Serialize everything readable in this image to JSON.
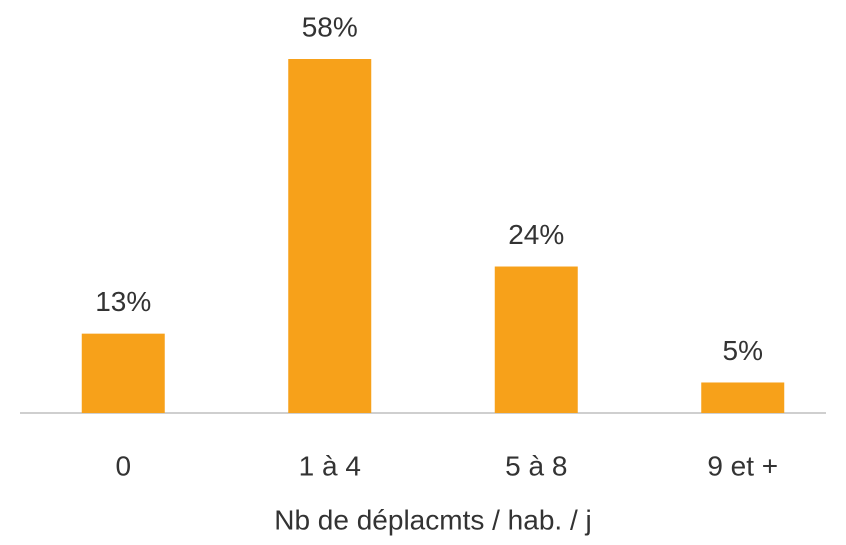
{
  "chart_data": {
    "type": "bar",
    "categories": [
      "0",
      "1 à 4",
      "5 à 8",
      "9 et +"
    ],
    "values": [
      13,
      58,
      24,
      5
    ],
    "value_labels": [
      "13%",
      "58%",
      "24%",
      "5%"
    ],
    "color": "#f7a11a",
    "x_label": "Nb de déplacmts / hab. / j"
  }
}
